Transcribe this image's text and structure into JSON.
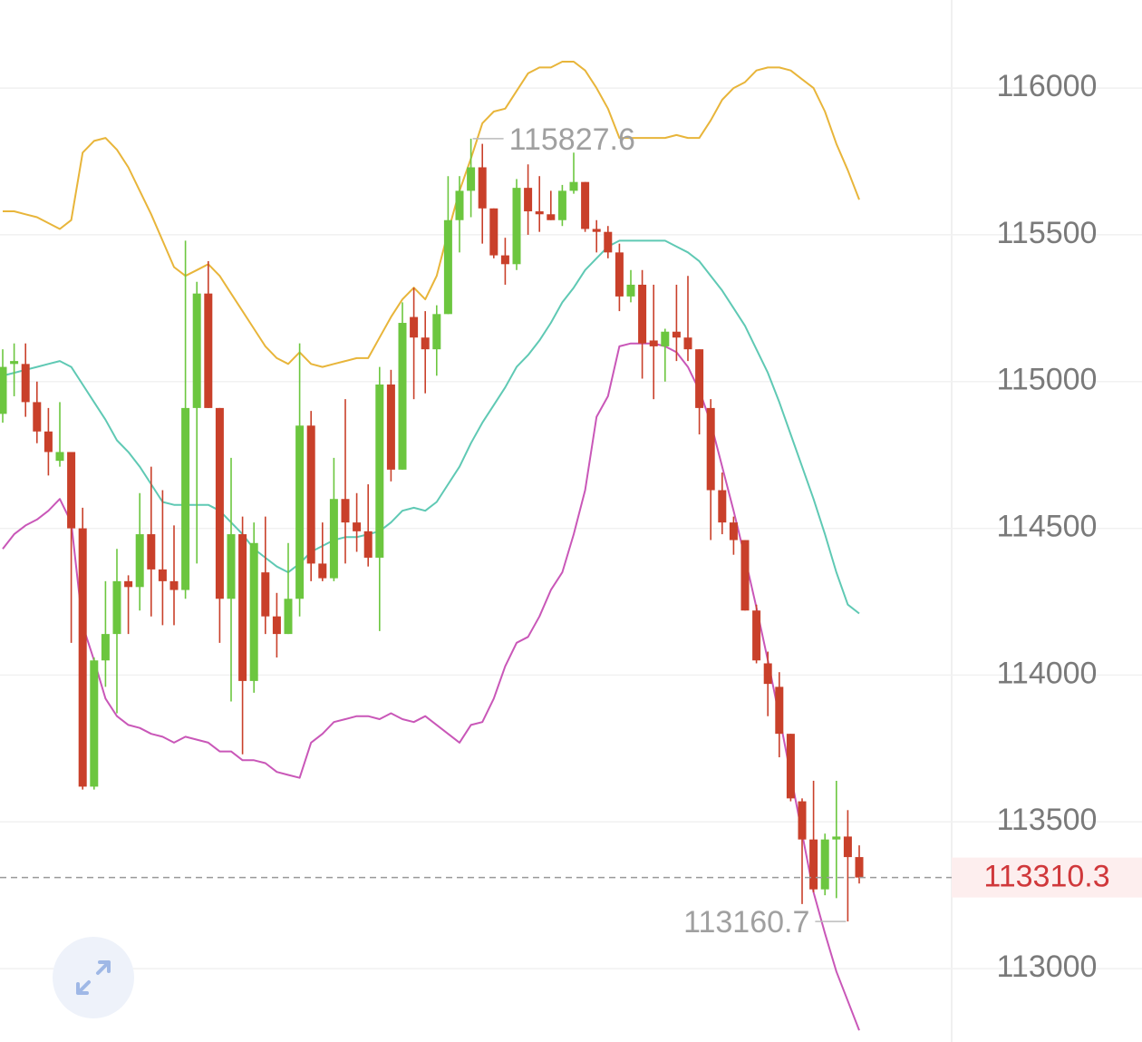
{
  "chart_data": {
    "type": "candlestick",
    "categories": [
      null,
      null,
      null,
      null,
      null,
      null,
      null,
      null,
      null,
      null,
      null,
      null,
      null,
      null,
      null,
      null,
      null,
      null,
      null,
      null,
      null,
      null,
      null,
      null,
      null,
      null,
      null,
      null,
      null,
      null,
      null,
      null,
      null,
      null,
      null,
      null,
      null,
      null,
      null,
      null,
      null,
      null,
      null,
      null,
      null,
      null,
      null,
      null,
      null,
      null,
      null,
      null,
      null,
      null,
      null,
      null,
      null,
      null,
      null,
      null,
      null,
      null,
      null,
      null,
      null,
      null,
      null,
      null,
      null,
      null,
      null,
      null,
      null,
      null,
      null,
      null
    ],
    "candles": {
      "up_color": "#6cc63f",
      "down_color": "#c9402a",
      "open": [
        114890,
        115060,
        115060,
        114930,
        114830,
        114730,
        114760,
        114500,
        113620,
        114050,
        114140,
        114320,
        114300,
        114480,
        114360,
        114320,
        114290,
        114910,
        115300,
        114910,
        114260,
        114480,
        113980,
        114350,
        114200,
        114140,
        114260,
        114850,
        114380,
        114330,
        114600,
        114520,
        114490,
        114400,
        114990,
        114700,
        115220,
        115150,
        115110,
        115230,
        115550,
        115650,
        115730,
        115590,
        115430,
        115400,
        115660,
        115580,
        115570,
        115550,
        115650,
        115680,
        115520,
        115510,
        115440,
        115290,
        115330,
        115140,
        115120,
        115170,
        115150,
        115110,
        114910,
        114630,
        114520,
        114460,
        114220,
        114040,
        113960,
        113800,
        113570,
        113440,
        113270,
        113440,
        113450,
        113380
      ],
      "high": [
        115110,
        115130,
        115130,
        115000,
        114910,
        114930,
        114760,
        114570,
        114060,
        114320,
        114430,
        114340,
        114620,
        114710,
        114630,
        114510,
        115480,
        115340,
        115410,
        114910,
        114740,
        114540,
        114520,
        114540,
        114280,
        114450,
        115130,
        114900,
        114520,
        114740,
        114940,
        114620,
        114650,
        115050,
        115040,
        115270,
        115320,
        115240,
        115260,
        115700,
        115700,
        115827.6,
        115810,
        115590,
        115490,
        115690,
        115740,
        115700,
        115650,
        115670,
        115780,
        115680,
        115550,
        115530,
        115470,
        115380,
        115380,
        115330,
        115180,
        115330,
        115360,
        115110,
        114940,
        114690,
        114540,
        114460,
        114240,
        114080,
        114010,
        113800,
        113580,
        113640,
        113460,
        113640,
        113540,
        113420
      ],
      "low": [
        114860,
        114950,
        114880,
        114790,
        114680,
        114710,
        114110,
        113610,
        113610,
        113960,
        113870,
        114140,
        114220,
        114200,
        114170,
        114170,
        114260,
        114380,
        114910,
        114110,
        113910,
        113730,
        113940,
        114140,
        114060,
        114140,
        114200,
        114320,
        114320,
        114320,
        114380,
        114420,
        114370,
        114150,
        114660,
        114700,
        114940,
        114960,
        115020,
        115230,
        115440,
        115560,
        115470,
        115420,
        115330,
        115380,
        115500,
        115510,
        115550,
        115530,
        115640,
        115510,
        115440,
        115420,
        115240,
        115270,
        115010,
        114940,
        115000,
        115070,
        115070,
        114820,
        114460,
        114480,
        114410,
        114220,
        114040,
        113860,
        113720,
        113570,
        113220,
        113260,
        113250,
        113240,
        113160.7,
        113290
      ],
      "close": [
        115050,
        115070,
        114930,
        114830,
        114760,
        114760,
        114500,
        113620,
        114050,
        114140,
        114320,
        114300,
        114480,
        114360,
        114320,
        114290,
        114910,
        115300,
        114910,
        114260,
        114480,
        113980,
        114450,
        114200,
        114140,
        114260,
        114850,
        114380,
        114330,
        114600,
        114520,
        114490,
        114400,
        114990,
        114700,
        115200,
        115150,
        115110,
        115230,
        115550,
        115650,
        115730,
        115590,
        115430,
        115400,
        115660,
        115580,
        115570,
        115550,
        115650,
        115680,
        115520,
        115510,
        115440,
        115290,
        115330,
        115130,
        115120,
        115170,
        115150,
        115110,
        114910,
        114630,
        114520,
        114460,
        114220,
        114050,
        113970,
        113800,
        113580,
        113440,
        113270,
        113440,
        113450,
        113380,
        113310.3
      ]
    },
    "lines": [
      {
        "color": "#e8b53a",
        "values": [
          115580,
          115580,
          115570,
          115560,
          115540,
          115520,
          115550,
          115780,
          115820,
          115830,
          115790,
          115730,
          115650,
          115570,
          115480,
          115390,
          115360,
          115380,
          115400,
          115360,
          115300,
          115240,
          115180,
          115120,
          115080,
          115060,
          115100,
          115060,
          115050,
          115060,
          115070,
          115080,
          115080,
          115150,
          115220,
          115280,
          115320,
          115280,
          115360,
          115510,
          115650,
          115760,
          115880,
          115920,
          115930,
          115990,
          116050,
          116070,
          116070,
          116090,
          116090,
          116060,
          116000,
          115930,
          115830,
          115830,
          115830,
          115830,
          115830,
          115840,
          115830,
          115830,
          115890,
          115960,
          116000,
          116020,
          116060,
          116070,
          116070,
          116060,
          116030,
          116000,
          115920,
          115810,
          115720,
          115620
        ]
      },
      {
        "color": "#5fc9b4",
        "values": [
          115020,
          115030,
          115040,
          115050,
          115060,
          115070,
          115050,
          114990,
          114930,
          114870,
          114800,
          114760,
          114710,
          114650,
          114590,
          114580,
          114580,
          114580,
          114580,
          114560,
          114520,
          114480,
          114430,
          114400,
          114370,
          114350,
          114380,
          114420,
          114440,
          114460,
          114470,
          114470,
          114480,
          114490,
          114520,
          114560,
          114570,
          114560,
          114590,
          114650,
          114710,
          114790,
          114860,
          114920,
          114980,
          115050,
          115090,
          115140,
          115200,
          115270,
          115320,
          115380,
          115420,
          115460,
          115480,
          115480,
          115480,
          115480,
          115480,
          115460,
          115440,
          115410,
          115360,
          115310,
          115250,
          115190,
          115110,
          115030,
          114930,
          114820,
          114710,
          114600,
          114480,
          114350,
          114240,
          114210
        ]
      },
      {
        "color": "#c957b8",
        "values": [
          114430,
          114480,
          114510,
          114530,
          114560,
          114600,
          114520,
          114170,
          114050,
          113920,
          113860,
          113830,
          113820,
          113800,
          113790,
          113770,
          113790,
          113780,
          113770,
          113740,
          113740,
          113710,
          113710,
          113700,
          113670,
          113660,
          113650,
          113770,
          113800,
          113840,
          113850,
          113860,
          113860,
          113850,
          113870,
          113850,
          113840,
          113860,
          113830,
          113800,
          113770,
          113830,
          113840,
          113920,
          114030,
          114110,
          114130,
          114200,
          114290,
          114350,
          114480,
          114630,
          114880,
          114950,
          115120,
          115130,
          115130,
          115130,
          115120,
          115100,
          115050,
          114970,
          114860,
          114710,
          114560,
          114400,
          114230,
          114050,
          113860,
          113660,
          113460,
          113260,
          113120,
          112990,
          112890,
          112790
        ]
      }
    ],
    "ylim": [
      112750,
      116300
    ],
    "yticks": [
      113000,
      113500,
      114000,
      114500,
      115000,
      115500,
      116000
    ],
    "grid": true
  }
}
